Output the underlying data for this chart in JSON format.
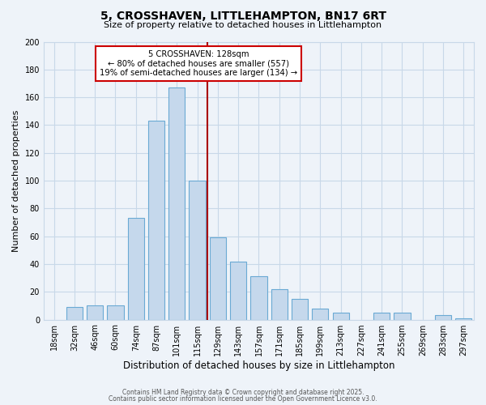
{
  "title": "5, CROSSHAVEN, LITTLEHAMPTON, BN17 6RT",
  "subtitle": "Size of property relative to detached houses in Littlehampton",
  "xlabel": "Distribution of detached houses by size in Littlehampton",
  "ylabel": "Number of detached properties",
  "bar_labels": [
    "18sqm",
    "32sqm",
    "46sqm",
    "60sqm",
    "74sqm",
    "87sqm",
    "101sqm",
    "115sqm",
    "129sqm",
    "143sqm",
    "157sqm",
    "171sqm",
    "185sqm",
    "199sqm",
    "213sqm",
    "227sqm",
    "241sqm",
    "255sqm",
    "269sqm",
    "283sqm",
    "297sqm"
  ],
  "bar_counts": [
    0,
    9,
    10,
    10,
    73,
    143,
    167,
    100,
    59,
    42,
    31,
    22,
    15,
    8,
    5,
    0,
    5,
    5,
    0,
    3,
    1
  ],
  "bar_color": "#c5d8ec",
  "bar_edge_color": "#6aaad4",
  "vline_position": 8,
  "vline_color": "#aa0000",
  "annotation_title": "5 CROSSHAVEN: 128sqm",
  "annotation_line1": "← 80% of detached houses are smaller (557)",
  "annotation_line2": "19% of semi-detached houses are larger (134) →",
  "annotation_box_color": "#ffffff",
  "annotation_box_edge": "#cc0000",
  "ylim": [
    0,
    200
  ],
  "yticks": [
    0,
    20,
    40,
    60,
    80,
    100,
    120,
    140,
    160,
    180,
    200
  ],
  "footer1": "Contains HM Land Registry data © Crown copyright and database right 2025.",
  "footer2": "Contains public sector information licensed under the Open Government Licence v3.0.",
  "bg_color": "#eef3f9",
  "grid_color": "#c8d8e8",
  "plot_bg_color": "#eef3f9"
}
